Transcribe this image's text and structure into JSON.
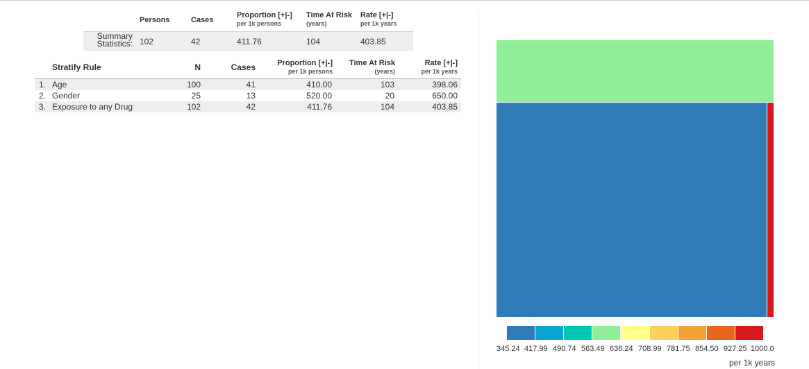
{
  "summary": {
    "headers": [
      {
        "title": "Persons",
        "sub": ""
      },
      {
        "title": "Cases",
        "sub": ""
      },
      {
        "title": "Proportion [+|-]",
        "sub": "per 1k persons"
      },
      {
        "title": "Time At Risk",
        "sub": "(years)"
      },
      {
        "title": "Rate [+|-]",
        "sub": "per 1k years"
      }
    ],
    "row_label_1": "Summary",
    "row_label_2": "Statistics:",
    "values": [
      "102",
      "42",
      "411.76",
      "104",
      "403.85"
    ]
  },
  "stratify": {
    "headers": {
      "rule": "Stratify Rule",
      "n": "N",
      "cases": "Cases",
      "proportion": "Proportion [+|-]",
      "proportion_sub": "per 1k persons",
      "tar": "Time At Risk",
      "tar_sub": "(years)",
      "rate": "Rate [+|-]",
      "rate_sub": "per 1k years"
    },
    "rows": [
      {
        "idx": "1.",
        "rule": "Age",
        "n": "100",
        "cases": "41",
        "proportion": "410.00",
        "tar": "103",
        "rate": "398.06"
      },
      {
        "idx": "2.",
        "rule": "Gender",
        "n": "25",
        "cases": "13",
        "proportion": "520.00",
        "tar": "20",
        "rate": "650.00"
      },
      {
        "idx": "3.",
        "rule": "Exposure to any Drug",
        "n": "102",
        "cases": "42",
        "proportion": "411.76",
        "tar": "104",
        "rate": "403.85"
      }
    ]
  },
  "treemap": {
    "colors": {
      "top": "#90ee99",
      "main": "#2e7bb7",
      "strip": "#d7191c"
    }
  },
  "legend": {
    "items": [
      {
        "label": "345.24",
        "color": "#2e7bb7"
      },
      {
        "label": "417.99",
        "color": "#0ba5d2"
      },
      {
        "label": "490.74",
        "color": "#00c9b2"
      },
      {
        "label": "563.49",
        "color": "#90ee99"
      },
      {
        "label": "636.24",
        "color": "#ffff8c"
      },
      {
        "label": "708.99",
        "color": "#f8d05a"
      },
      {
        "label": "781.75",
        "color": "#f4a236"
      },
      {
        "label": "854.50",
        "color": "#e8661f"
      },
      {
        "label": "927.25",
        "color": "#d7191c"
      },
      {
        "label": "1000.0",
        "color": ""
      }
    ],
    "unit": "per 1k years"
  }
}
